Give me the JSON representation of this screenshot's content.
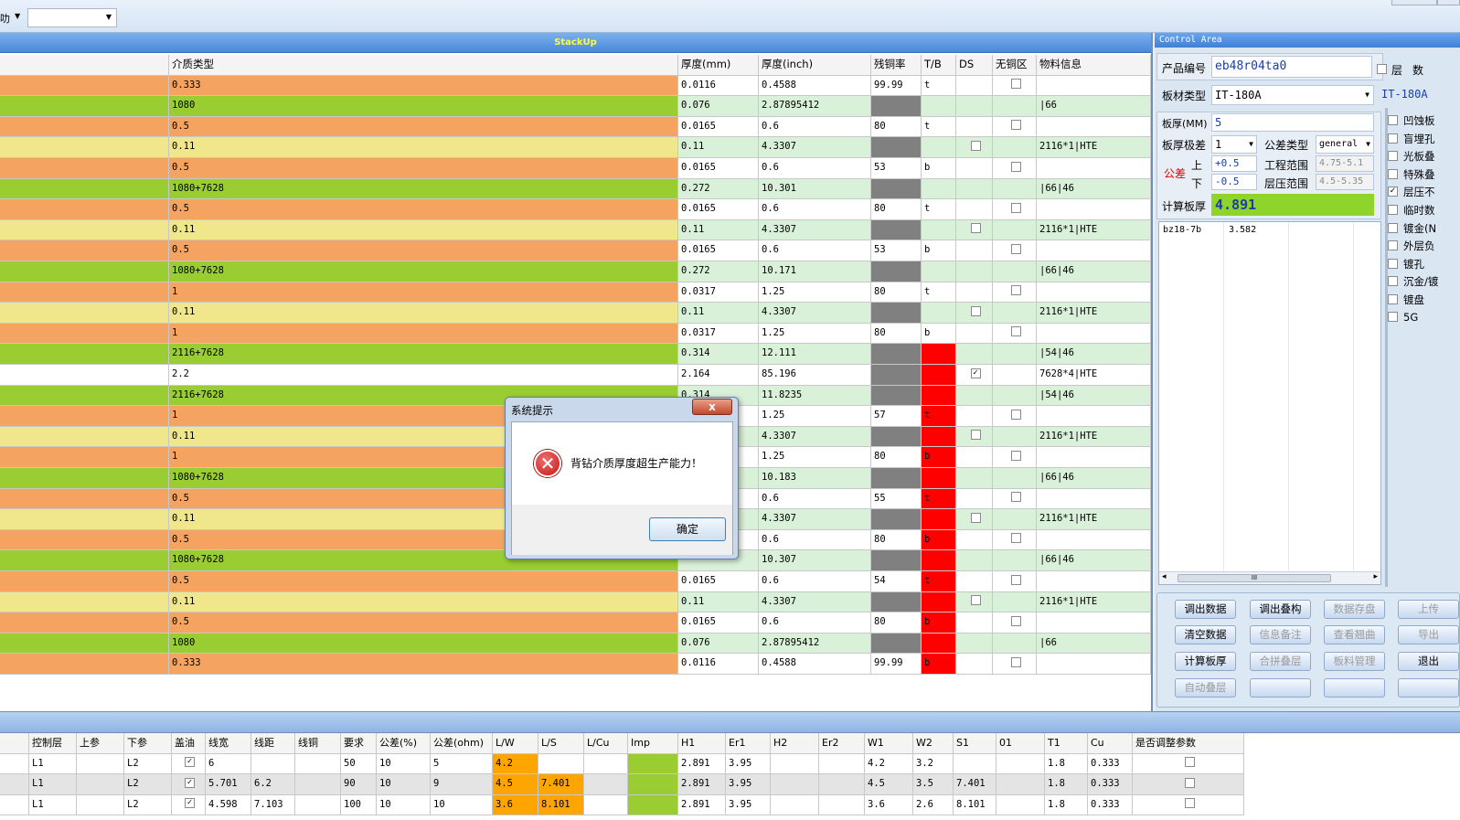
{
  "toolbar": {
    "left_text": "叻",
    "combo_value": ""
  },
  "stackup": {
    "title": "StackUp",
    "headers": [
      "介质类型",
      "厚度(mm)",
      "厚度(inch)",
      "残铜率",
      "T/B",
      "DS",
      "无铜区",
      "物料信息"
    ],
    "rows": [
      {
        "type": "0.333",
        "mm": "0.0116",
        "inch": "0.4588",
        "cu": "99.99",
        "tb": "t",
        "ds": "",
        "nocu": "box",
        "mat": "",
        "color": "orange",
        "tbred": false
      },
      {
        "type": "1080",
        "mm": "0.076",
        "inch": "2.87895412",
        "cu": "",
        "tb": "",
        "ds": "",
        "nocu": "",
        "mat": "|66",
        "color": "green",
        "tbred": false
      },
      {
        "type": "0.5",
        "mm": "0.0165",
        "inch": "0.6",
        "cu": "80",
        "tb": "t",
        "ds": "",
        "nocu": "box",
        "mat": "",
        "color": "orange",
        "tbred": false
      },
      {
        "type": "0.11",
        "mm": "0.11",
        "inch": "4.3307",
        "cu": "",
        "tb": "",
        "ds": "box",
        "nocu": "",
        "mat": "2116*1|HTE",
        "color": "yellow",
        "tbred": false
      },
      {
        "type": "0.5",
        "mm": "0.0165",
        "inch": "0.6",
        "cu": "53",
        "tb": "b",
        "ds": "",
        "nocu": "box",
        "mat": "",
        "color": "orange",
        "tbred": false
      },
      {
        "type": "1080+7628",
        "mm": "0.272",
        "inch": "10.301",
        "cu": "",
        "tb": "",
        "ds": "",
        "nocu": "",
        "mat": "|66|46",
        "color": "green",
        "tbred": false
      },
      {
        "type": "0.5",
        "mm": "0.0165",
        "inch": "0.6",
        "cu": "80",
        "tb": "t",
        "ds": "",
        "nocu": "box",
        "mat": "",
        "color": "orange",
        "tbred": false
      },
      {
        "type": "0.11",
        "mm": "0.11",
        "inch": "4.3307",
        "cu": "",
        "tb": "",
        "ds": "box",
        "nocu": "",
        "mat": "2116*1|HTE",
        "color": "yellow",
        "tbred": false
      },
      {
        "type": "0.5",
        "mm": "0.0165",
        "inch": "0.6",
        "cu": "53",
        "tb": "b",
        "ds": "",
        "nocu": "box",
        "mat": "",
        "color": "orange",
        "tbred": false
      },
      {
        "type": "1080+7628",
        "mm": "0.272",
        "inch": "10.171",
        "cu": "",
        "tb": "",
        "ds": "",
        "nocu": "",
        "mat": "|66|46",
        "color": "green",
        "tbred": false
      },
      {
        "type": "1",
        "mm": "0.0317",
        "inch": "1.25",
        "cu": "80",
        "tb": "t",
        "ds": "",
        "nocu": "box",
        "mat": "",
        "color": "orange",
        "tbred": false
      },
      {
        "type": "0.11",
        "mm": "0.11",
        "inch": "4.3307",
        "cu": "",
        "tb": "",
        "ds": "box",
        "nocu": "",
        "mat": "2116*1|HTE",
        "color": "yellow",
        "tbred": false
      },
      {
        "type": "1",
        "mm": "0.0317",
        "inch": "1.25",
        "cu": "80",
        "tb": "b",
        "ds": "",
        "nocu": "box",
        "mat": "",
        "color": "orange",
        "tbred": false
      },
      {
        "type": "2116+7628",
        "mm": "0.314",
        "inch": "12.111",
        "cu": "",
        "tb": "",
        "ds": "",
        "nocu": "",
        "mat": "|54|46",
        "color": "green",
        "tbred": true
      },
      {
        "type": "2.2",
        "mm": "2.164",
        "inch": "85.196",
        "cu": "",
        "tb": "",
        "ds": "checked",
        "nocu": "",
        "mat": "7628*4|HTE",
        "color": "white",
        "tbred": true
      },
      {
        "type": "2116+7628",
        "mm": "0.314",
        "inch": "11.8235",
        "cu": "",
        "tb": "",
        "ds": "",
        "nocu": "",
        "mat": "|54|46",
        "color": "green",
        "tbred": true
      },
      {
        "type": "1",
        "mm": "",
        "inch": "1.25",
        "cu": "57",
        "tb": "t",
        "ds": "",
        "nocu": "box",
        "mat": "",
        "color": "orange",
        "tbred": true
      },
      {
        "type": "0.11",
        "mm": "",
        "inch": "4.3307",
        "cu": "",
        "tb": "",
        "ds": "box",
        "nocu": "",
        "mat": "2116*1|HTE",
        "color": "yellow",
        "tbred": true
      },
      {
        "type": "1",
        "mm": "",
        "inch": "1.25",
        "cu": "80",
        "tb": "b",
        "ds": "",
        "nocu": "box",
        "mat": "",
        "color": "orange",
        "tbred": true
      },
      {
        "type": "1080+7628",
        "mm": "",
        "inch": "10.183",
        "cu": "",
        "tb": "",
        "ds": "",
        "nocu": "",
        "mat": "|66|46",
        "color": "green",
        "tbred": true
      },
      {
        "type": "0.5",
        "mm": "",
        "inch": "0.6",
        "cu": "55",
        "tb": "t",
        "ds": "",
        "nocu": "box",
        "mat": "",
        "color": "orange",
        "tbred": true
      },
      {
        "type": "0.11",
        "mm": "",
        "inch": "4.3307",
        "cu": "",
        "tb": "",
        "ds": "box",
        "nocu": "",
        "mat": "2116*1|HTE",
        "color": "yellow",
        "tbred": true
      },
      {
        "type": "0.5",
        "mm": "",
        "inch": "0.6",
        "cu": "80",
        "tb": "b",
        "ds": "",
        "nocu": "box",
        "mat": "",
        "color": "orange",
        "tbred": true
      },
      {
        "type": "1080+7628",
        "mm": "",
        "inch": "10.307",
        "cu": "",
        "tb": "",
        "ds": "",
        "nocu": "",
        "mat": "|66|46",
        "color": "green",
        "tbred": true
      },
      {
        "type": "0.5",
        "mm": "0.0165",
        "inch": "0.6",
        "cu": "54",
        "tb": "t",
        "ds": "",
        "nocu": "box",
        "mat": "",
        "color": "orange",
        "tbred": true
      },
      {
        "type": "0.11",
        "mm": "0.11",
        "inch": "4.3307",
        "cu": "",
        "tb": "",
        "ds": "box",
        "nocu": "",
        "mat": "2116*1|HTE",
        "color": "yellow",
        "tbred": true
      },
      {
        "type": "0.5",
        "mm": "0.0165",
        "inch": "0.6",
        "cu": "80",
        "tb": "b",
        "ds": "",
        "nocu": "box",
        "mat": "",
        "color": "orange",
        "tbred": true
      },
      {
        "type": "1080",
        "mm": "0.076",
        "inch": "2.87895412",
        "cu": "",
        "tb": "",
        "ds": "",
        "nocu": "",
        "mat": "|66",
        "color": "green",
        "tbred": true
      },
      {
        "type": "0.333",
        "mm": "0.0116",
        "inch": "0.4588",
        "cu": "99.99",
        "tb": "b",
        "ds": "",
        "nocu": "box",
        "mat": "",
        "color": "orange",
        "tbred": true
      }
    ]
  },
  "control": {
    "title": "Control Area",
    "product_label": "产品编号",
    "product_value": "eb48r04ta0",
    "layer_label": "层",
    "count_label": "数",
    "material_label": "板材类型",
    "material_value": "IT-180A",
    "material_value2": "IT-180A",
    "thick_label": "板厚(MM)",
    "thick_value": "5",
    "tol_label": "板厚极差",
    "tol_value": "1",
    "toltype_label": "公差类型",
    "toltype_value": "general",
    "gc_label": "公差",
    "up_label": "上",
    "down_label": "下",
    "up_value": "+0.5",
    "down_value": "-0.5",
    "eng_label": "工程范围",
    "eng_value": "4.75-5.1",
    "press_label": "层压范围",
    "press_value": "4.5-5.35",
    "calc_label": "计算板厚",
    "calc_value": "4.891",
    "list_name": "bz18-7b",
    "list_value": "3.582",
    "list_scroll_thumb": "III",
    "checks": [
      {
        "label": "凹蚀板",
        "checked": false
      },
      {
        "label": "盲埋孔",
        "checked": false
      },
      {
        "label": "光板叠",
        "checked": false
      },
      {
        "label": "特殊叠",
        "checked": false
      },
      {
        "label": "层压不",
        "checked": true
      },
      {
        "label": "临时数",
        "checked": false
      },
      {
        "label": "镀金(N",
        "checked": false
      },
      {
        "label": "外层负",
        "checked": false
      },
      {
        "label": "镀孔",
        "checked": false
      },
      {
        "label": "沉金/镀",
        "checked": false
      },
      {
        "label": "镀盘",
        "checked": false
      },
      {
        "label": "5G",
        "checked": false
      }
    ],
    "buttons": [
      [
        "调出数据",
        "调出叠构",
        "数据存盘",
        "上传"
      ],
      [
        "清空数据",
        "信息备注",
        "查看翘曲",
        "导出"
      ],
      [
        "计算板厚",
        "合拼叠层",
        "板料管理",
        "退出"
      ],
      [
        "自动叠层",
        "",
        "",
        ""
      ]
    ]
  },
  "impedance": {
    "headers": [
      "控制层",
      "上参",
      "下参",
      "盖油",
      "线宽",
      "线距",
      "线铜",
      "要求",
      "公差(%)",
      "公差(ohm)",
      "L/W",
      "L/S",
      "L/Cu",
      "Imp",
      "H1",
      "Er1",
      "H2",
      "Er2",
      "W1",
      "W2",
      "S1",
      "01",
      "T1",
      "Cu",
      "是否调整参数"
    ],
    "rows": [
      [
        "L1",
        "",
        "L2",
        "✓",
        "6",
        "",
        "",
        "50",
        "10",
        "5",
        "4.2",
        "",
        "",
        "",
        "2.891",
        "3.95",
        "",
        "",
        "4.2",
        "3.2",
        "",
        "",
        "1.8",
        "0.333",
        ""
      ],
      [
        "L1",
        "",
        "L2",
        "✓",
        "5.701",
        "6.2",
        "",
        "90",
        "10",
        "9",
        "4.5",
        "7.401",
        "",
        "",
        "2.891",
        "3.95",
        "",
        "",
        "4.5",
        "3.5",
        "7.401",
        "",
        "1.8",
        "0.333",
        ""
      ],
      [
        "L1",
        "",
        "L2",
        "✓",
        "4.598",
        "7.103",
        "",
        "100",
        "10",
        "10",
        "3.6",
        "8.101",
        "",
        "",
        "2.891",
        "3.95",
        "",
        "",
        "3.6",
        "2.6",
        "8.101",
        "",
        "1.8",
        "0.333",
        ""
      ]
    ]
  },
  "dialog": {
    "title": "系统提示",
    "message": "背钻介质厚度超生产能力！",
    "ok": "确定",
    "close": "x"
  },
  "colors": {
    "orange": "#f4a460",
    "green": "#9acd32",
    "yellow": "#f0e68c",
    "white": "#ffffff",
    "red": "#ff0000",
    "gray": "#808080"
  }
}
